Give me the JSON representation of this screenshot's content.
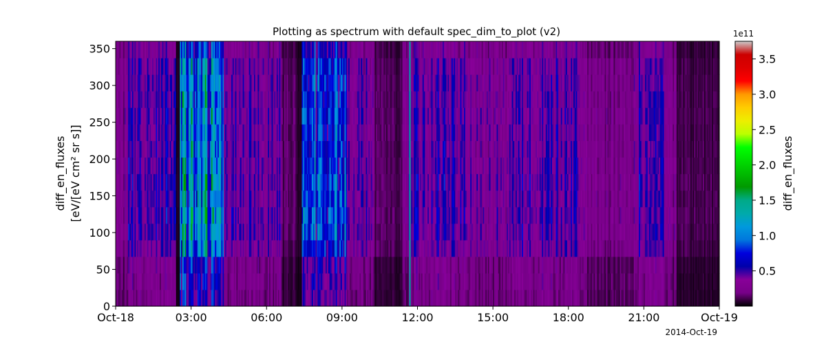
{
  "chart_data": {
    "type": "heatmap",
    "title": "Plotting as spectrum with default spec_dim_to_plot (v2)",
    "ylabel_line1": "diff_en_fluxes",
    "ylabel_line2": "[eV/[eV cm² sr s]]",
    "xlabel": "",
    "date_label": "2014-Oct-19",
    "xlim": [
      0,
      24
    ],
    "ylim": [
      0,
      360
    ],
    "x_ticks": [
      {
        "value": 0,
        "label": "Oct-18"
      },
      {
        "value": 3,
        "label": "03:00"
      },
      {
        "value": 6,
        "label": "06:00"
      },
      {
        "value": 9,
        "label": "09:00"
      },
      {
        "value": 12,
        "label": "12:00"
      },
      {
        "value": 15,
        "label": "15:00"
      },
      {
        "value": 18,
        "label": "18:00"
      },
      {
        "value": 21,
        "label": "21:00"
      },
      {
        "value": 24,
        "label": "Oct-19"
      }
    ],
    "y_ticks": [
      0,
      50,
      100,
      150,
      200,
      250,
      300,
      350
    ],
    "y_bin_edges": [
      0,
      22.5,
      45,
      67.5,
      90,
      112.5,
      135,
      157.5,
      180,
      202.5,
      225,
      247.5,
      270,
      292.5,
      315,
      337.5,
      360
    ],
    "angular_profile": [
      0.55,
      0.6,
      0.62,
      0.95,
      1.05,
      1.1,
      1.05,
      1.1,
      1.05,
      1.0,
      1.0,
      1.05,
      1.0,
      1.0,
      0.95,
      0.75
    ],
    "time_profile": [
      {
        "start": 0.0,
        "end": 0.5,
        "level": 0.25
      },
      {
        "start": 0.5,
        "end": 2.4,
        "level": 0.45
      },
      {
        "start": 2.4,
        "end": 2.55,
        "level": 0.05
      },
      {
        "start": 2.55,
        "end": 4.3,
        "level": 1.05
      },
      {
        "start": 4.3,
        "end": 6.6,
        "level": 0.4
      },
      {
        "start": 6.6,
        "end": 7.2,
        "level": 0.15
      },
      {
        "start": 7.2,
        "end": 7.4,
        "level": 0.05
      },
      {
        "start": 7.4,
        "end": 9.2,
        "level": 0.75
      },
      {
        "start": 9.2,
        "end": 10.3,
        "level": 0.35
      },
      {
        "start": 10.3,
        "end": 11.4,
        "level": 0.12
      },
      {
        "start": 11.4,
        "end": 11.85,
        "level": 0.35
      },
      {
        "start": 11.85,
        "end": 14.0,
        "level": 0.45
      },
      {
        "start": 14.0,
        "end": 16.0,
        "level": 0.35
      },
      {
        "start": 16.0,
        "end": 18.5,
        "level": 0.42
      },
      {
        "start": 18.5,
        "end": 20.6,
        "level": 0.25
      },
      {
        "start": 20.6,
        "end": 21.8,
        "level": 0.45
      },
      {
        "start": 21.8,
        "end": 22.3,
        "level": 0.25
      },
      {
        "start": 22.3,
        "end": 24.0,
        "level": 0.1
      }
    ],
    "spike": {
      "time": 11.7,
      "value": 130000000000.0
    },
    "colorbar": {
      "label": "diff_en_fluxes",
      "scale_label": "1e11",
      "vmin": 0.0,
      "vmax": 3.75,
      "ticks": [
        0.5,
        1.0,
        1.5,
        2.0,
        2.5,
        3.0,
        3.5
      ],
      "tick_labels": [
        "0.5",
        "1.0",
        "1.5",
        "2.0",
        "2.5",
        "3.0",
        "3.5"
      ],
      "colormap": "nipy_spectral"
    }
  }
}
